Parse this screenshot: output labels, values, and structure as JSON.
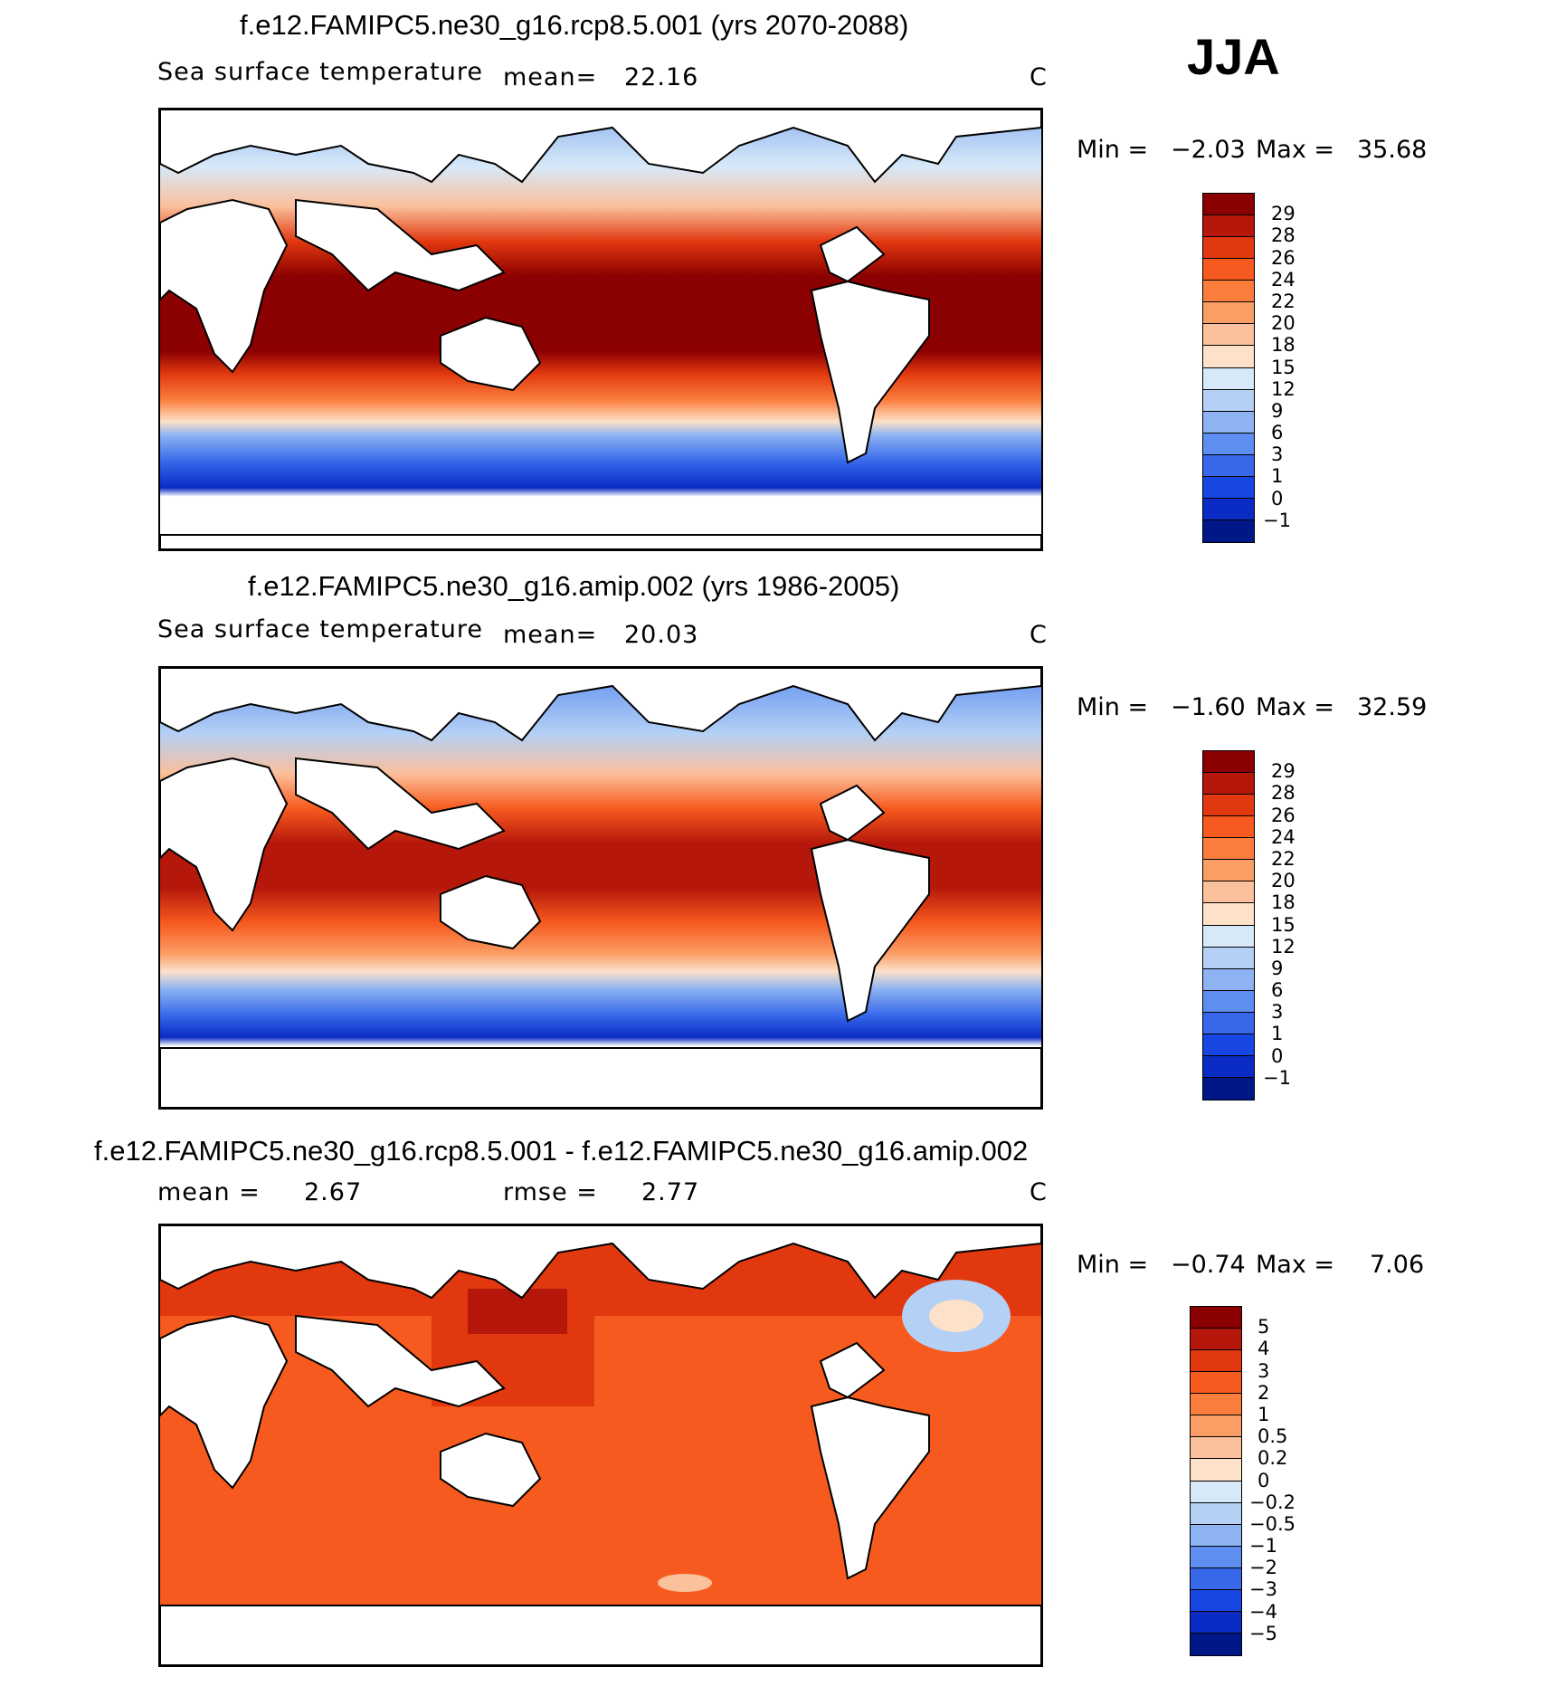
{
  "season": "JJA",
  "panels": [
    {
      "title": "f.e12.FAMIPC5.ne30_g16.rcp8.5.001 (yrs 2070-2088)",
      "variable": "Sea surface temperature",
      "stat1_label": "mean=",
      "stat1_value": "22.16",
      "stat2_label": "",
      "stat2_value": "",
      "units": "C",
      "min_label": "Min =",
      "min_value": "−2.03",
      "max_label": "Max =",
      "max_value": "35.68",
      "levels": [
        "29",
        "28",
        "26",
        "24",
        "22",
        "20",
        "18",
        "15",
        "12",
        "9",
        "6",
        "3",
        "1",
        "0",
        "−1"
      ],
      "colors": [
        "#8b0000",
        "#b5180b",
        "#e1380f",
        "#f75a1e",
        "#fb7d3c",
        "#fa9e66",
        "#fbc09c",
        "#fde1c9",
        "#d7e9f8",
        "#b4d0f5",
        "#8db3f2",
        "#5e8ff0",
        "#3768ea",
        "#1846e3",
        "#0a2bc4",
        "#001887"
      ]
    },
    {
      "title": "f.e12.FAMIPC5.ne30_g16.amip.002 (yrs 1986-2005)",
      "variable": "Sea surface temperature",
      "stat1_label": "mean=",
      "stat1_value": "20.03",
      "stat2_label": "",
      "stat2_value": "",
      "units": "C",
      "min_label": "Min =",
      "min_value": "−1.60",
      "max_label": "Max =",
      "max_value": "32.59",
      "levels": [
        "29",
        "28",
        "26",
        "24",
        "22",
        "20",
        "18",
        "15",
        "12",
        "9",
        "6",
        "3",
        "1",
        "0",
        "−1"
      ],
      "colors": [
        "#8b0000",
        "#b5180b",
        "#e1380f",
        "#f75a1e",
        "#fb7d3c",
        "#fa9e66",
        "#fbc09c",
        "#fde1c9",
        "#d7e9f8",
        "#b4d0f5",
        "#8db3f2",
        "#5e8ff0",
        "#3768ea",
        "#1846e3",
        "#0a2bc4",
        "#001887"
      ]
    },
    {
      "title": "f.e12.FAMIPC5.ne30_g16.rcp8.5.001 - f.e12.FAMIPC5.ne30_g16.amip.002",
      "variable": "",
      "stat1_label": "mean =",
      "stat1_value": "2.67",
      "stat2_label": "rmse =",
      "stat2_value": "2.77",
      "units": "C",
      "min_label": "Min =",
      "min_value": "−0.74",
      "max_label": "Max =",
      "max_value": "7.06",
      "levels": [
        "5",
        "4",
        "3",
        "2",
        "1",
        "0.5",
        "0.2",
        "0",
        "−0.2",
        "−0.5",
        "−1",
        "−2",
        "−3",
        "−4",
        "−5"
      ],
      "colors": [
        "#8b0000",
        "#b5180b",
        "#e1380f",
        "#f75a1e",
        "#fb7d3c",
        "#fa9e66",
        "#fbc09c",
        "#fde1c9",
        "#d7e9f8",
        "#b4d0f5",
        "#8db3f2",
        "#5e8ff0",
        "#3768ea",
        "#1846e3",
        "#0a2bc4",
        "#001887"
      ]
    }
  ]
}
